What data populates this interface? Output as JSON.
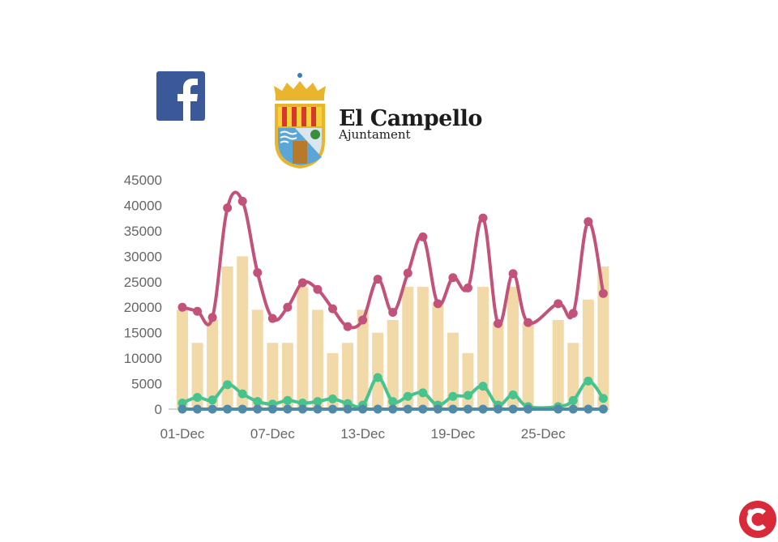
{
  "logos": {
    "facebook": "facebook-logo",
    "brand_name": "El Campello",
    "brand_sub": "Ajuntament",
    "corner": "red-c-logo"
  },
  "chart_data": {
    "type": "bar+line",
    "title": "",
    "xlabel": "",
    "ylabel": "",
    "ylim": [
      0,
      45000
    ],
    "yticks": [
      "0",
      "5000",
      "10000",
      "15000",
      "20000",
      "25000",
      "30000",
      "35000",
      "40000",
      "45000"
    ],
    "x": [
      1,
      2,
      3,
      4,
      5,
      6,
      7,
      8,
      9,
      10,
      11,
      12,
      13,
      14,
      15,
      16,
      17,
      18,
      19,
      20,
      21,
      22,
      23,
      24,
      25,
      26,
      27,
      28,
      29
    ],
    "xtick_labels": [
      "01-Dec",
      "07-Dec",
      "13-Dec",
      "19-Dec",
      "25-Dec"
    ],
    "xtick_days": [
      1,
      7,
      13,
      19,
      25
    ],
    "grid": false,
    "bars": {
      "color": "#f2d9a8",
      "values": [
        19500,
        13000,
        17500,
        28000,
        30000,
        19500,
        13000,
        13000,
        24000,
        19500,
        11000,
        13000,
        19500,
        15000,
        17500,
        24000,
        24000,
        21000,
        15000,
        11000,
        24000,
        17000,
        24000,
        17000,
        null,
        17500,
        13000,
        21500,
        28000
      ]
    },
    "series": [
      {
        "color": "#c2527a",
        "values": [
          20000,
          19200,
          18000,
          39500,
          40800,
          26800,
          17800,
          20000,
          24800,
          23500,
          19700,
          16200,
          17500,
          25500,
          19000,
          26700,
          33800,
          20700,
          25800,
          23800,
          37500,
          16800,
          26600,
          17000,
          null,
          20700,
          18800,
          36800,
          22700
        ]
      },
      {
        "color": "#47c48e",
        "values": [
          1200,
          2300,
          1800,
          4800,
          3000,
          1500,
          1000,
          1700,
          1200,
          1500,
          2000,
          1100,
          800,
          6200,
          1500,
          2500,
          3200,
          800,
          2500,
          2700,
          4500,
          800,
          2800,
          500,
          null,
          500,
          1700,
          5500,
          2100
        ]
      },
      {
        "color": "#4f8aa8",
        "values": [
          0,
          0,
          0,
          0,
          0,
          0,
          0,
          0,
          0,
          0,
          0,
          0,
          0,
          0,
          0,
          0,
          0,
          0,
          0,
          0,
          0,
          0,
          0,
          0,
          null,
          0,
          0,
          0,
          0
        ]
      }
    ]
  }
}
